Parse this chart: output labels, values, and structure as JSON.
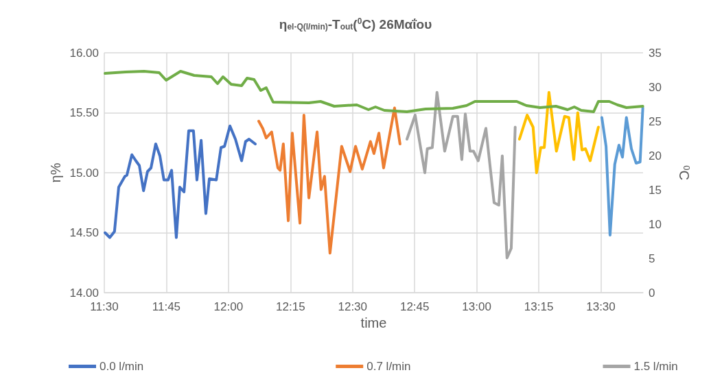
{
  "chart_data": {
    "type": "line",
    "title": "η$_{el-Q(l/min)}$-T$_{out}$($^{0}$C) 26Μαΐου",
    "xlabel": "time",
    "ylabel": "η%",
    "y2label": "$^{0}$C",
    "xlim": [
      11.5,
      13.67
    ],
    "xticks": [
      {
        "value": 11.5,
        "label": "11:30"
      },
      {
        "value": 11.75,
        "label": "11:45"
      },
      {
        "value": 12,
        "label": "12:00"
      },
      {
        "value": 12.25,
        "label": "12:15"
      },
      {
        "value": 12.5,
        "label": "12:30"
      },
      {
        "value": 12.75,
        "label": "12:45"
      },
      {
        "value": 13,
        "label": "13:00"
      },
      {
        "value": 13.25,
        "label": "13:15"
      },
      {
        "value": 13.5,
        "label": "13:30"
      }
    ],
    "ylim": [
      14,
      16
    ],
    "yticks": [
      {
        "value": 14,
        "label": "14.00"
      },
      {
        "value": 14.5,
        "label": "14.50"
      },
      {
        "value": 15,
        "label": "15.00"
      },
      {
        "value": 15.5,
        "label": "15.50"
      },
      {
        "value": 16,
        "label": "16.00"
      }
    ],
    "y2lim": [
      0,
      35
    ],
    "y2ticks": [
      0,
      5,
      10,
      15,
      20,
      25,
      30,
      35
    ],
    "grid": true,
    "legend": "bottom",
    "marker": "none",
    "line_style": "solid",
    "series": [
      {
        "name": "0.0 l/min",
        "color": "#4472c4",
        "x": [
          11.503,
          11.522,
          11.541,
          11.558,
          11.583,
          11.591,
          11.611,
          11.627,
          11.641,
          11.658,
          11.674,
          11.688,
          11.707,
          11.724,
          11.74,
          11.757,
          11.771,
          11.79,
          11.804,
          11.821,
          11.84,
          11.859,
          11.873,
          11.89,
          11.909,
          11.923,
          11.951,
          11.97,
          11.984,
          12.006,
          12.028,
          12.053,
          12.069,
          12.083,
          12.108
        ],
        "values": [
          14.5,
          14.46,
          14.51,
          14.88,
          14.97,
          14.98,
          15.15,
          15.1,
          15.06,
          14.85,
          15.01,
          15.04,
          15.24,
          15.14,
          14.94,
          14.94,
          15.02,
          14.46,
          14.88,
          14.84,
          15.35,
          15.35,
          14.94,
          15.27,
          14.66,
          14.95,
          14.94,
          15.21,
          15.22,
          15.39,
          15.28,
          15.1,
          15.26,
          15.28,
          15.24
        ]
      },
      {
        "name": "0.7 l/min",
        "color": "#ed7d31",
        "x": [
          12.122,
          12.138,
          12.152,
          12.174,
          12.199,
          12.208,
          12.221,
          12.241,
          12.257,
          12.288,
          12.304,
          12.324,
          12.357,
          12.373,
          12.387,
          12.409,
          12.456,
          12.49,
          12.512,
          12.539,
          12.572,
          12.586,
          12.606,
          12.625,
          12.669,
          12.691
        ],
        "values": [
          15.43,
          15.37,
          15.29,
          15.34,
          15.04,
          15.02,
          15.24,
          14.6,
          15.33,
          14.58,
          15.48,
          14.79,
          15.34,
          14.86,
          14.97,
          14.33,
          15.22,
          15.01,
          15.22,
          15.03,
          15.26,
          15.16,
          15.33,
          15.04,
          15.54,
          15.24
        ]
      },
      {
        "name": "1.5 l/min",
        "color": "#a5a5a5",
        "x": [
          12.719,
          12.752,
          12.791,
          12.801,
          12.821,
          12.84,
          12.871,
          12.904,
          12.923,
          12.94,
          12.954,
          12.973,
          12.987,
          13.006,
          13.037,
          13.07,
          13.089,
          13.103,
          13.122,
          13.139,
          13.155
        ],
        "values": [
          15.28,
          15.48,
          15.0,
          15.2,
          15.21,
          15.67,
          15.18,
          15.47,
          15.47,
          15.11,
          15.49,
          15.18,
          15.18,
          15.1,
          15.37,
          14.75,
          14.73,
          15.14,
          14.29,
          14.37,
          15.38
        ]
      },
      {
        "color": "#ffc000",
        "x": [
          13.172,
          13.203,
          13.227,
          13.241,
          13.258,
          13.272,
          13.291,
          13.321,
          13.354,
          13.371,
          13.391,
          13.407,
          13.424,
          13.438,
          13.457,
          13.49
        ],
        "values": [
          15.28,
          15.48,
          15.38,
          15.0,
          15.21,
          15.21,
          15.67,
          15.18,
          15.47,
          15.46,
          15.11,
          15.5,
          15.19,
          15.2,
          15.1,
          15.38
        ]
      },
      {
        "color": "#5b9bd5",
        "x": [
          13.504,
          13.521,
          13.537,
          13.556,
          13.573,
          13.587,
          13.603,
          13.623,
          13.642,
          13.658,
          13.669
        ],
        "values": [
          15.46,
          15.22,
          14.48,
          15.07,
          15.23,
          15.13,
          15.46,
          15.2,
          15.08,
          15.09,
          15.54
        ]
      },
      {
        "color": "#70ad47",
        "axis": "y2",
        "x": [
          11.503,
          11.586,
          11.66,
          11.721,
          11.749,
          11.807,
          11.862,
          11.931,
          11.956,
          11.978,
          12.011,
          12.053,
          12.075,
          12.103,
          12.13,
          12.152,
          12.18,
          12.324,
          12.371,
          12.426,
          12.517,
          12.564,
          12.592,
          12.628,
          12.719,
          12.794,
          12.904,
          12.959,
          12.993,
          13.161,
          13.2,
          13.255,
          13.319,
          13.366,
          13.393,
          13.421,
          13.471,
          13.49,
          13.534,
          13.567,
          13.603,
          13.669
        ],
        "values": [
          32.0,
          32.2,
          32.3,
          32.1,
          31.0,
          32.3,
          31.7,
          31.5,
          30.5,
          31.5,
          30.4,
          30.2,
          31.3,
          31.1,
          29.5,
          29.9,
          27.8,
          27.7,
          27.9,
          27.2,
          27.4,
          26.7,
          27.1,
          26.6,
          26.4,
          26.8,
          26.9,
          27.3,
          27.9,
          27.9,
          27.3,
          27.0,
          27.2,
          26.7,
          27.1,
          26.6,
          26.4,
          27.9,
          27.9,
          27.4,
          27.0,
          27.2
        ]
      }
    ]
  }
}
